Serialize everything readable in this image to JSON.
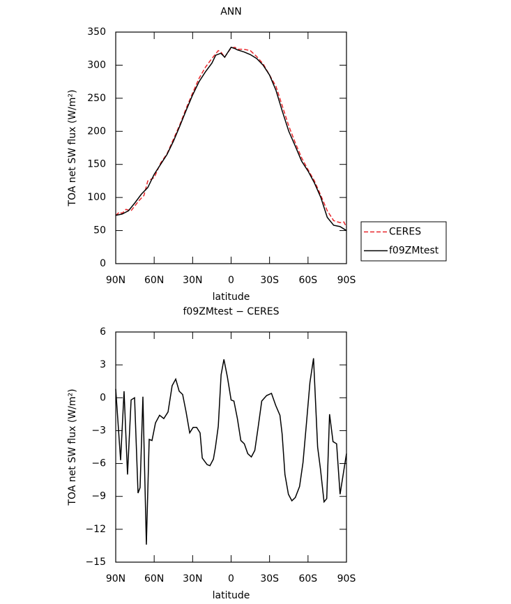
{
  "chart_data": [
    {
      "type": "line",
      "title": "ANN",
      "xlabel": "latitude",
      "ylabel": "TOA net SW flux (W/m²)",
      "xlim": [
        90,
        -90
      ],
      "xticks": [
        {
          "value": 90,
          "label": "90N"
        },
        {
          "value": 60,
          "label": "60N"
        },
        {
          "value": 30,
          "label": "30N"
        },
        0,
        {
          "value": -30,
          "label": "30S"
        },
        {
          "value": -60,
          "label": "60S"
        },
        {
          "value": -90,
          "label": "90S"
        }
      ],
      "ylim": [
        0,
        350
      ],
      "yticks": [
        0,
        50,
        100,
        150,
        200,
        250,
        300,
        350
      ],
      "legend": "right",
      "series": [
        {
          "name": "CERES",
          "color": "#e8262a",
          "dash": true,
          "x": [
            90,
            87,
            85,
            82,
            78,
            72,
            68,
            65,
            60,
            55,
            50,
            45,
            40,
            35,
            30,
            25,
            20,
            15,
            10,
            8,
            5,
            3,
            0,
            -3,
            -5,
            -10,
            -15,
            -20,
            -25,
            -30,
            -35,
            -40,
            -45,
            -50,
            -55,
            -60,
            -65,
            -70,
            -75,
            -80,
            -85,
            -88,
            -90
          ],
          "values": [
            73,
            78,
            76,
            82,
            80,
            95,
            103,
            125,
            130,
            152,
            166,
            188,
            210,
            235,
            258,
            280,
            297,
            310,
            322,
            320,
            312,
            318,
            326,
            327,
            324,
            324,
            322,
            313,
            302,
            285,
            268,
            238,
            208,
            183,
            160,
            142,
            125,
            103,
            80,
            65,
            62,
            63,
            55
          ]
        },
        {
          "name": "f09ZMtest",
          "color": "#000000",
          "dash": false,
          "x": [
            90,
            85,
            80,
            75,
            70,
            65,
            60,
            55,
            50,
            45,
            40,
            35,
            30,
            25,
            20,
            15,
            12,
            8,
            5,
            3,
            0,
            -3,
            -5,
            -10,
            -15,
            -20,
            -25,
            -30,
            -35,
            -40,
            -45,
            -50,
            -55,
            -60,
            -65,
            -70,
            -75,
            -80,
            -85,
            -90
          ],
          "values": [
            73,
            75,
            80,
            92,
            105,
            115,
            135,
            150,
            165,
            185,
            208,
            232,
            255,
            275,
            290,
            303,
            315,
            318,
            312,
            318,
            327,
            325,
            323,
            320,
            316,
            310,
            300,
            285,
            262,
            230,
            200,
            178,
            155,
            140,
            122,
            100,
            70,
            58,
            56,
            50
          ]
        }
      ]
    },
    {
      "type": "line",
      "title": "f09ZMtest − CERES",
      "xlabel": "latitude",
      "ylabel": "TOA net SW flux (W/m²)",
      "xlim": [
        90,
        -90
      ],
      "xticks": [
        {
          "value": 90,
          "label": "90N"
        },
        {
          "value": 60,
          "label": "60N"
        },
        {
          "value": 30,
          "label": "30N"
        },
        0,
        {
          "value": -30,
          "label": "30S"
        },
        {
          "value": -60,
          "label": "60S"
        },
        {
          "value": -90,
          "label": "90S"
        }
      ],
      "ylim": [
        -15,
        6
      ],
      "yticks": [
        6,
        3,
        0,
        {
          "value": -3,
          "label": "−3"
        },
        {
          "value": -6,
          "label": "−6"
        },
        {
          "value": -9,
          "label": "−9"
        },
        {
          "value": -12,
          "label": "−12"
        },
        {
          "value": -15,
          "label": "−15"
        }
      ],
      "series": [
        {
          "color": "#000000",
          "dash": false,
          "x": [
            90,
            86.2,
            83.5,
            80.8,
            78,
            75.3,
            72.6,
            71,
            68.8,
            66.1,
            63.9,
            61.7,
            59,
            55.8,
            52.5,
            49.2,
            46,
            43.2,
            40.5,
            37.8,
            35.1,
            32.3,
            29.6,
            26.9,
            24.2,
            22.5,
            18.7,
            16.5,
            13.8,
            12.2,
            10,
            7.8,
            5.6,
            2.9,
            0,
            -2.2,
            -4.9,
            -7.6,
            -10.3,
            -13,
            -15.8,
            -18.5,
            -21.2,
            -23.9,
            -27.7,
            -31.5,
            -34.8,
            -38.1,
            -39.8,
            -42,
            -44.7,
            -47.4,
            -50.1,
            -53.4,
            -56.1,
            -58.8,
            -61.5,
            -64.3,
            -67.5,
            -69.7,
            -72.5,
            -74.6,
            -76.8,
            -79.5,
            -82.3,
            -85,
            -90
          ],
          "values": [
            0.8,
            -5.7,
            0.6,
            -7,
            -0.2,
            0,
            -8.7,
            -8.2,
            0.1,
            -13.4,
            -3.8,
            -3.9,
            -2.3,
            -1.6,
            -1.9,
            -1.3,
            1.1,
            1.7,
            0.6,
            0.3,
            -1.3,
            -3.2,
            -2.7,
            -2.7,
            -3.2,
            -5.5,
            -6.1,
            -6.2,
            -5.6,
            -4.5,
            -2.6,
            2.1,
            3.5,
            1.9,
            -0.2,
            -0.3,
            -1.9,
            -3.9,
            -4.2,
            -5.1,
            -5.4,
            -4.8,
            -2.6,
            -0.3,
            0.2,
            0.4,
            -0.7,
            -1.6,
            -3.3,
            -7,
            -8.8,
            -9.4,
            -9.1,
            -8.1,
            -5.9,
            -2.3,
            1.4,
            3.6,
            -4.5,
            -6.5,
            -9.5,
            -9.2,
            -1.5,
            -4,
            -4.2,
            -8.8,
            -5.1
          ]
        }
      ]
    }
  ]
}
